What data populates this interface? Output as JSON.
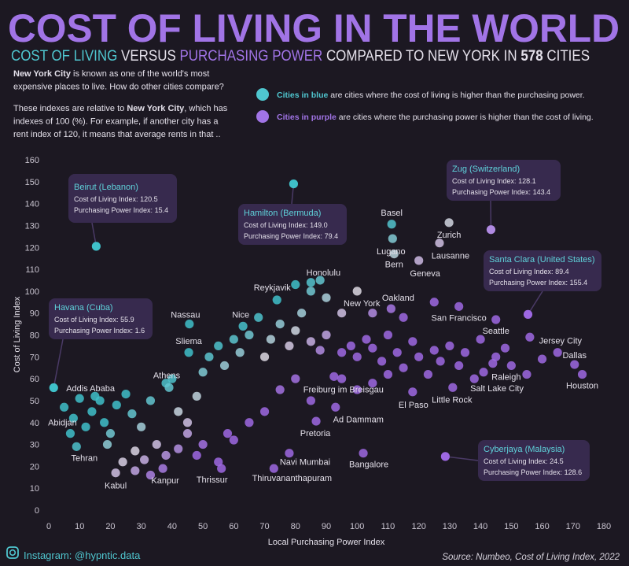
{
  "chart_data": {
    "type": "scatter",
    "title": "COST OF LIVING IN THE WORLD",
    "subtitle": [
      {
        "text": "COST OF LIVING",
        "color": "#4fc6cf"
      },
      {
        "text": " VERSUS "
      },
      {
        "text": "PURCHASING POWER",
        "color": "#a174e6"
      },
      {
        "text": " COMPARED TO NEW YORK IN "
      },
      {
        "text": 578,
        "bold": true
      },
      {
        "text": " CITIES"
      }
    ],
    "intro": [
      [
        [
          {
            "text": "New York City",
            "bold": true
          },
          {
            "text": " is known as one of the world's most"
          }
        ],
        [
          {
            "text": "expensive places to live. How do other cities compare?"
          }
        ]
      ],
      [
        [
          {
            "text": "These indexes are relative to "
          },
          {
            "text": "New York City",
            "bold": true
          },
          {
            "text": ", which has"
          }
        ],
        [
          {
            "text": "indexes of 100 (%). For example, if another city has a"
          }
        ],
        [
          {
            "text": "rent index of 120, it means that average rents in that .."
          }
        ]
      ]
    ],
    "legend": [
      {
        "highlight": "Cities in blue",
        "text": " are cities where the cost of living is higher than the purchasing power.",
        "color": "#4fc6cf"
      },
      {
        "highlight": "Cities in purple",
        "text": " are cities where the purchasing power is higher than the cost of living.",
        "color": "#a174e6"
      }
    ],
    "x_label": "Local Purchasing Power Index",
    "y_label": "Cost of Living Index",
    "xlim": [
      0,
      180
    ],
    "ylim": [
      0,
      160
    ],
    "xticks": [
      0,
      10,
      20,
      30,
      40,
      50,
      60,
      70,
      80,
      90,
      100,
      110,
      120,
      130,
      140,
      150,
      160,
      170,
      180
    ],
    "yticks": [
      0,
      10,
      20,
      30,
      40,
      50,
      60,
      70,
      80,
      90,
      100,
      110,
      120,
      130,
      140,
      150,
      160
    ],
    "grid": false,
    "colors": {
      "blue": "#3fc0c9",
      "purple": "#9d68e2",
      "neutral": "#dcd8e2"
    },
    "points": {
      "x": [
        111.2,
        111.5,
        112,
        129.8,
        126.7,
        120,
        85,
        74,
        100,
        111,
        133,
        145,
        156,
        170.5,
        173,
        144,
        141,
        131,
        118,
        92.5,
        93,
        86.7,
        78,
        102,
        73,
        56,
        37,
        21.7,
        9,
        7,
        16.6,
        39,
        45.4,
        45.6,
        63,
        5,
        8,
        10,
        12,
        14,
        15,
        18,
        20,
        22,
        25,
        27,
        30,
        33,
        35,
        38,
        40,
        28,
        31,
        24,
        19,
        42,
        45,
        48,
        50,
        52,
        55,
        57,
        60,
        62,
        65,
        68,
        70,
        72,
        75,
        78,
        80,
        82,
        85,
        88,
        90,
        95,
        98,
        100,
        103,
        105,
        108,
        110,
        113,
        115,
        118,
        120,
        123,
        125,
        127,
        130,
        133,
        135,
        138,
        140,
        145,
        148,
        150,
        155,
        160,
        165,
        85,
        88,
        90,
        80,
        42,
        48,
        55,
        60,
        65,
        70,
        75,
        80,
        85,
        95,
        100,
        105,
        110,
        58,
        50,
        45,
        38,
        33,
        28,
        95,
        105,
        115,
        125
      ],
      "y": [
        130.6,
        124,
        117,
        131.3,
        122,
        114,
        104,
        96,
        100,
        92,
        93,
        87,
        79,
        66.5,
        62,
        67,
        63,
        56,
        54,
        61,
        47,
        40.6,
        26,
        26,
        19,
        19,
        19,
        17,
        29,
        35,
        50,
        56,
        72,
        85,
        84,
        47,
        42,
        51,
        38,
        45,
        52,
        40,
        35,
        48,
        53,
        44,
        38,
        50,
        30,
        58,
        60,
        27,
        23,
        22,
        30,
        45,
        40,
        52,
        63,
        70,
        75,
        66,
        78,
        72,
        80,
        88,
        70,
        78,
        85,
        75,
        82,
        90,
        77,
        73,
        80,
        72,
        75,
        70,
        78,
        74,
        68,
        80,
        72,
        65,
        77,
        70,
        62,
        73,
        68,
        75,
        66,
        72,
        60,
        78,
        70,
        74,
        66,
        62,
        69,
        72,
        100,
        105,
        97,
        103,
        28,
        25,
        22,
        32,
        40,
        45,
        55,
        60,
        50,
        60,
        55,
        58,
        62,
        35,
        30,
        35,
        25,
        16,
        18,
        90,
        90,
        88,
        95
      ],
      "labels": [
        "Basel",
        "Lugano",
        "Bern",
        "Zurich",
        "Lausanne",
        "Geneva",
        "Honolulu",
        "Reykjavik",
        "New York",
        "Oakland",
        "San Francisco",
        "Seattle",
        "Jersey City",
        "Dallas",
        "Houston",
        "Raleigh",
        "Salt Lake City",
        "Little Rock",
        "El Paso",
        "Freiburg im Breisgau",
        "Ad Dammam",
        "Pretoria",
        "Navi Mumbai",
        "Bangalore",
        "Thiruvananthapuram",
        "Thrissur",
        "Kanpur",
        "Kabul",
        "Tehran",
        "Abidjan",
        "Addis Ababa",
        "Athens",
        "Sliema",
        "Nassau",
        "Nice",
        null,
        null,
        null,
        null,
        null,
        null,
        null,
        null,
        null,
        null,
        null,
        null,
        null,
        null,
        null,
        null,
        null,
        null,
        null,
        null,
        null,
        null,
        null,
        null,
        null,
        null,
        null,
        null,
        null,
        null,
        null,
        null,
        null,
        null,
        null,
        null,
        null,
        null,
        null,
        null,
        null,
        null,
        null,
        null,
        null,
        null,
        null,
        null,
        null,
        null,
        null,
        null,
        null,
        null,
        null,
        null,
        null,
        null,
        null,
        null,
        null,
        null,
        null,
        null,
        null,
        null,
        null,
        null,
        null,
        null,
        null,
        null,
        null,
        null,
        null,
        null,
        null,
        null,
        null,
        null,
        null,
        null,
        null,
        null,
        null,
        null,
        null,
        null
      ]
    },
    "annotation_cost_label": "Cost of Living Index:",
    "annotation_power_label": "Purchasing Power Index:",
    "annotations": [
      {
        "city": "Beirut (Lebanon)",
        "cost": 120.5,
        "power": 15.4
      },
      {
        "city": "Hamilton (Bermuda)",
        "cost": 149.0,
        "power": 79.4
      },
      {
        "city": "Zug (Switzerland)",
        "cost": 128.1,
        "power": 143.4
      },
      {
        "city": "Santa Clara (United States)",
        "cost": 89.4,
        "power": 155.4
      },
      {
        "city": "Havana (Cuba)",
        "cost": 55.9,
        "power": 1.6
      },
      {
        "city": "Cyberjaya (Malaysia)",
        "cost": 24.5,
        "power": 128.6
      }
    ],
    "footer_left": "Instagram: @hypntic.data",
    "footer_right": "Source: Numbeo, Cost of Living Index, 2022"
  }
}
